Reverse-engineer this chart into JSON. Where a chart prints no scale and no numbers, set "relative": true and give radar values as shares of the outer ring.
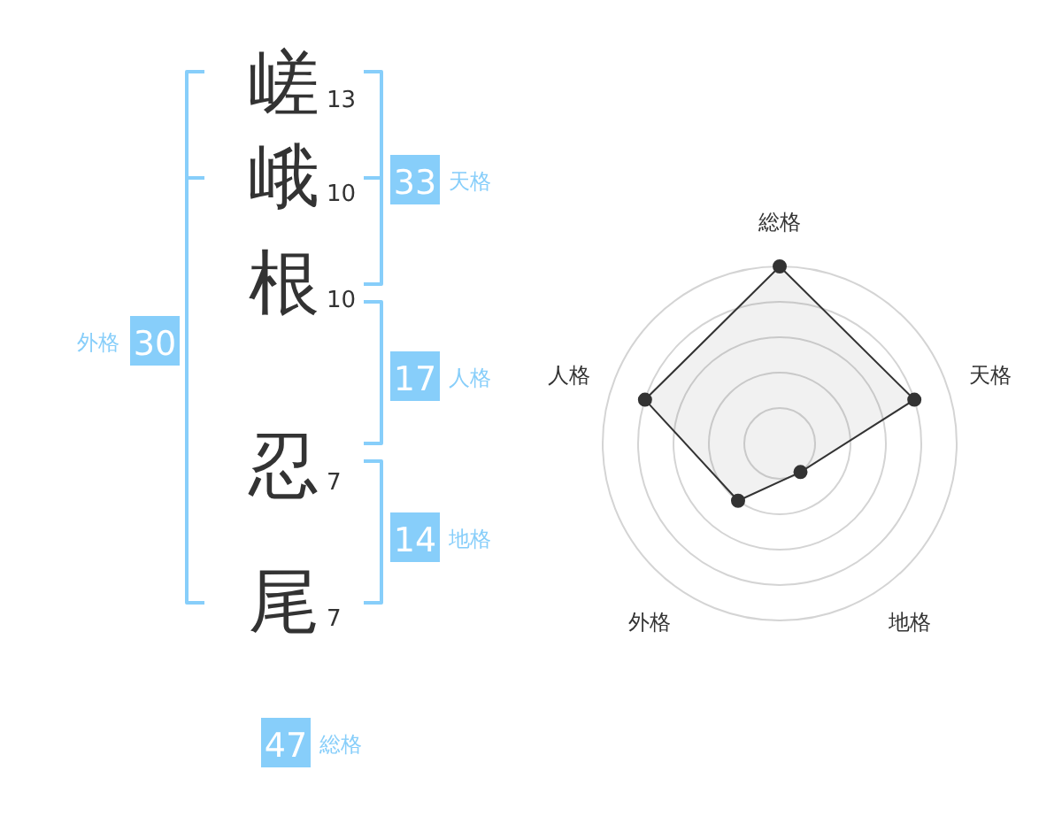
{
  "chart_data": [
    {
      "type": "other",
      "categories": [
        "嵯",
        "峨",
        "根",
        "忍",
        "尾"
      ],
      "values": [
        13,
        10,
        10,
        7,
        7
      ],
      "color": "#333333",
      "data_labels": true
    },
    {
      "type": "other",
      "categories": [
        "天格",
        "人格",
        "地格",
        "外格",
        "総格"
      ],
      "values": [
        33,
        17,
        14,
        30,
        47
      ],
      "color": "#87cefa",
      "data_labels": true
    },
    {
      "type": "radar",
      "categories": [
        "総格",
        "天格",
        "地格",
        "外格",
        "人格"
      ],
      "relative": true,
      "series": [
        {
          "color": "#333333",
          "values": [
            1,
            0.8,
            0.2,
            0.4,
            0.8
          ]
        }
      ],
      "grid": true,
      "marker": "circle"
    }
  ]
}
